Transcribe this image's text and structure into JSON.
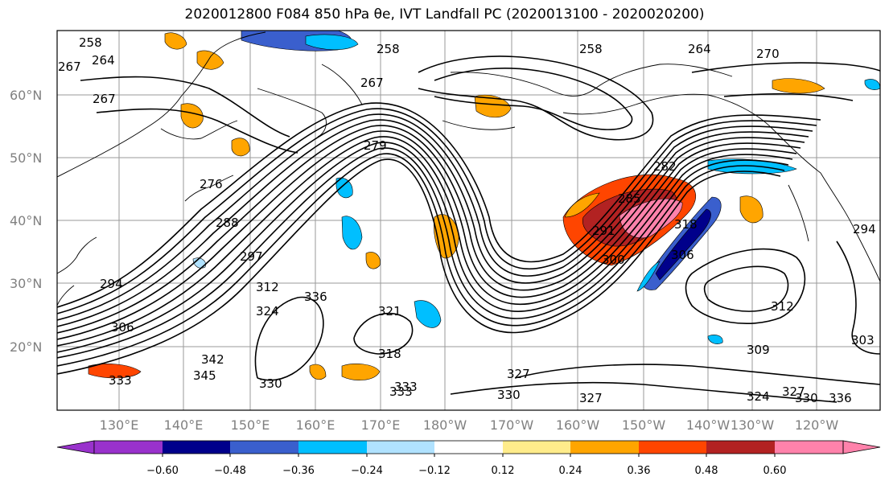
{
  "title": "2020012800 F084 850 hPa θe, IVT Landfall PC (2020013100 - 2020020200)",
  "lat_labels": [
    "60°N",
    "50°N",
    "40°N",
    "30°N",
    "20°N"
  ],
  "lon_labels": [
    "130°E",
    "140°E",
    "150°E",
    "160°E",
    "170°E",
    "180°W",
    "170°W",
    "160°W",
    "150°W",
    "140°W",
    "130°W",
    "120°W"
  ],
  "contour_labels": [
    "258",
    "264",
    "258",
    "267",
    "258",
    "264",
    "270",
    "267",
    "267",
    "279",
    "276",
    "288",
    "282",
    "285",
    "291",
    "297",
    "300",
    "294",
    "312",
    "306",
    "306",
    "318",
    "321",
    "318",
    "324",
    "327",
    "330",
    "333",
    "336",
    "333",
    "342",
    "345",
    "309",
    "312",
    "303",
    "330",
    "327",
    "324",
    "327",
    "330",
    "336",
    "294",
    "333"
  ],
  "colorbar": {
    "colors": [
      "#9932CC",
      "#00008B",
      "#3A5FCD",
      "#00BFFF",
      "#B0E2FF",
      "#FFFFFF",
      "#FFEC8B",
      "#FFA500",
      "#FF4500",
      "#B22222",
      "#FF82AB"
    ],
    "tick_labels": [
      "−0.60",
      "−0.48",
      "−0.36",
      "−0.24",
      "−0.12",
      "0.12",
      "0.24",
      "0.36",
      "0.48",
      "0.60"
    ]
  }
}
